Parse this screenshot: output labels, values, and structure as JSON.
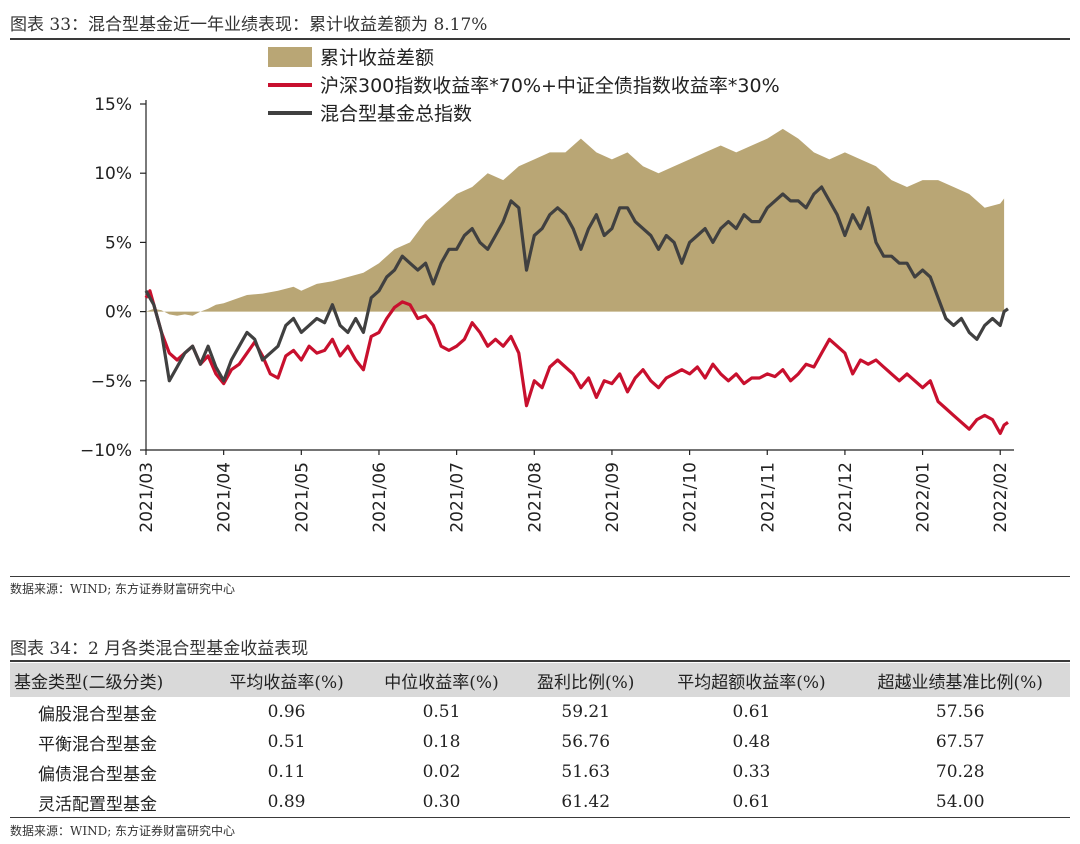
{
  "figure33": {
    "title": "图表 33：混合型基金近一年业绩表现：累计收益差额为 8.17%",
    "source": "数据来源：WIND; 东方证券财富研究中心"
  },
  "chart_data": {
    "type": "line",
    "title": "图表 33：混合型基金近一年业绩表现：累计收益差额为 8.17%",
    "ylim": [
      -10,
      15
    ],
    "yticks": [
      -10,
      -5,
      0,
      5,
      10,
      15
    ],
    "ytick_labels": [
      "−10%",
      "−5%",
      "0%",
      "5%",
      "10%",
      "15%"
    ],
    "xtick_labels": [
      "2021/03",
      "2021/04",
      "2021/05",
      "2021/06",
      "2021/07",
      "2021/08",
      "2021/09",
      "2021/10",
      "2021/11",
      "2021/12",
      "2022/01",
      "2022/02"
    ],
    "x_range": [
      0,
      11.1
    ],
    "legend": [
      {
        "label": "累计收益差额",
        "kind": "area",
        "color": "#b9a675"
      },
      {
        "label": "沪深300指数收益率*70%+中证全债指数收益率*30%",
        "kind": "line",
        "color": "#c8102e"
      },
      {
        "label": "混合型基金总指数",
        "kind": "line",
        "color": "#404040"
      }
    ],
    "series": [
      {
        "name": "累计收益差额",
        "color": "#b9a675",
        "x": [
          0,
          0.1,
          0.2,
          0.3,
          0.4,
          0.5,
          0.6,
          0.7,
          0.8,
          0.9,
          1.0,
          1.1,
          1.2,
          1.3,
          1.5,
          1.7,
          1.9,
          2.0,
          2.2,
          2.4,
          2.6,
          2.8,
          3.0,
          3.2,
          3.4,
          3.6,
          3.8,
          4.0,
          4.2,
          4.4,
          4.6,
          4.8,
          5.0,
          5.2,
          5.4,
          5.6,
          5.8,
          6.0,
          6.2,
          6.4,
          6.6,
          6.8,
          7.0,
          7.2,
          7.4,
          7.6,
          7.8,
          8.0,
          8.2,
          8.4,
          8.6,
          8.8,
          9.0,
          9.2,
          9.4,
          9.6,
          9.8,
          10.0,
          10.2,
          10.4,
          10.6,
          10.8,
          11.0,
          11.05
        ],
        "values": [
          0,
          0.2,
          0.1,
          -0.2,
          -0.3,
          -0.2,
          -0.3,
          0,
          0.2,
          0.5,
          0.6,
          0.8,
          1.0,
          1.2,
          1.3,
          1.5,
          1.8,
          1.5,
          2.0,
          2.2,
          2.5,
          2.8,
          3.5,
          4.5,
          5.0,
          6.5,
          7.5,
          8.5,
          9.0,
          10.0,
          9.5,
          10.5,
          11.0,
          11.5,
          11.5,
          12.5,
          11.5,
          11.0,
          11.5,
          10.5,
          10.0,
          10.5,
          11.0,
          11.5,
          12.0,
          11.5,
          12.0,
          12.5,
          13.2,
          12.5,
          11.5,
          11.0,
          11.5,
          11.0,
          10.5,
          9.5,
          9.0,
          9.5,
          9.5,
          9.0,
          8.5,
          7.5,
          7.8,
          8.17
        ]
      },
      {
        "name": "沪深300指数收益率*70%+中证全债指数收益率*30%",
        "color": "#c8102e",
        "x": [
          0,
          0.05,
          0.1,
          0.2,
          0.3,
          0.4,
          0.5,
          0.6,
          0.7,
          0.8,
          0.9,
          1.0,
          1.1,
          1.2,
          1.3,
          1.4,
          1.5,
          1.6,
          1.7,
          1.8,
          1.9,
          2.0,
          2.1,
          2.2,
          2.3,
          2.4,
          2.5,
          2.6,
          2.7,
          2.8,
          2.9,
          3.0,
          3.1,
          3.2,
          3.3,
          3.4,
          3.5,
          3.6,
          3.7,
          3.8,
          3.9,
          4.0,
          4.1,
          4.2,
          4.3,
          4.4,
          4.5,
          4.6,
          4.7,
          4.8,
          4.9,
          5.0,
          5.1,
          5.2,
          5.3,
          5.4,
          5.5,
          5.6,
          5.7,
          5.8,
          5.9,
          6.0,
          6.1,
          6.2,
          6.3,
          6.4,
          6.5,
          6.6,
          6.7,
          6.8,
          6.9,
          7.0,
          7.1,
          7.2,
          7.3,
          7.4,
          7.5,
          7.6,
          7.7,
          7.8,
          7.9,
          8.0,
          8.1,
          8.2,
          8.3,
          8.4,
          8.5,
          8.6,
          8.7,
          8.8,
          8.9,
          9.0,
          9.1,
          9.2,
          9.3,
          9.4,
          9.5,
          9.6,
          9.7,
          9.8,
          9.9,
          10.0,
          10.1,
          10.2,
          10.3,
          10.4,
          10.5,
          10.6,
          10.7,
          10.8,
          10.9,
          11.0,
          11.05,
          11.1
        ],
        "values": [
          1.0,
          1.5,
          0.5,
          -1.5,
          -3.0,
          -3.5,
          -3.0,
          -2.5,
          -3.8,
          -3.2,
          -4.5,
          -5.2,
          -4.2,
          -3.8,
          -3.0,
          -2.2,
          -3.2,
          -4.5,
          -4.8,
          -3.2,
          -2.8,
          -3.5,
          -2.5,
          -3.0,
          -2.8,
          -2.0,
          -3.2,
          -2.5,
          -3.5,
          -4.2,
          -1.8,
          -1.5,
          -0.5,
          0.3,
          0.7,
          0.5,
          -0.5,
          -0.3,
          -1.0,
          -2.5,
          -2.8,
          -2.5,
          -2.0,
          -0.8,
          -1.5,
          -2.5,
          -2.0,
          -2.5,
          -1.8,
          -3.0,
          -6.8,
          -5.0,
          -5.5,
          -4.0,
          -3.5,
          -4.0,
          -4.5,
          -5.5,
          -4.8,
          -6.2,
          -5.0,
          -5.2,
          -4.5,
          -5.8,
          -4.8,
          -4.2,
          -5.0,
          -5.5,
          -4.8,
          -4.5,
          -4.2,
          -4.5,
          -4.0,
          -4.8,
          -3.8,
          -4.5,
          -5.0,
          -4.5,
          -5.2,
          -4.8,
          -4.8,
          -4.5,
          -4.7,
          -4.2,
          -5.0,
          -4.5,
          -3.8,
          -4.0,
          -3.0,
          -2.0,
          -2.5,
          -3.0,
          -4.5,
          -3.5,
          -3.8,
          -3.5,
          -4.0,
          -4.5,
          -5.0,
          -4.5,
          -5.0,
          -5.5,
          -5.0,
          -6.5,
          -7.0,
          -7.5,
          -8.0,
          -8.5,
          -7.8,
          -7.5,
          -7.8,
          -8.8,
          -8.2,
          -8.0
        ]
      },
      {
        "name": "混合型基金总指数",
        "color": "#404040",
        "x": [
          0,
          0.05,
          0.1,
          0.2,
          0.3,
          0.4,
          0.5,
          0.6,
          0.7,
          0.8,
          0.9,
          1.0,
          1.1,
          1.2,
          1.3,
          1.4,
          1.5,
          1.6,
          1.7,
          1.8,
          1.9,
          2.0,
          2.1,
          2.2,
          2.3,
          2.4,
          2.5,
          2.6,
          2.7,
          2.8,
          2.9,
          3.0,
          3.1,
          3.2,
          3.3,
          3.4,
          3.5,
          3.6,
          3.7,
          3.8,
          3.9,
          4.0,
          4.1,
          4.2,
          4.3,
          4.4,
          4.5,
          4.6,
          4.7,
          4.8,
          4.9,
          5.0,
          5.1,
          5.2,
          5.3,
          5.4,
          5.5,
          5.6,
          5.7,
          5.8,
          5.9,
          6.0,
          6.1,
          6.2,
          6.3,
          6.4,
          6.5,
          6.6,
          6.7,
          6.8,
          6.9,
          7.0,
          7.1,
          7.2,
          7.3,
          7.4,
          7.5,
          7.6,
          7.7,
          7.8,
          7.9,
          8.0,
          8.1,
          8.2,
          8.3,
          8.4,
          8.5,
          8.6,
          8.7,
          8.8,
          8.9,
          9.0,
          9.1,
          9.2,
          9.3,
          9.4,
          9.5,
          9.6,
          9.7,
          9.8,
          9.9,
          10.0,
          10.1,
          10.2,
          10.3,
          10.4,
          10.5,
          10.6,
          10.7,
          10.8,
          10.9,
          11.0,
          11.05,
          11.1
        ],
        "values": [
          1.5,
          1.0,
          0.5,
          -1.5,
          -5.0,
          -4.0,
          -3.0,
          -2.5,
          -3.8,
          -2.5,
          -4.0,
          -5.0,
          -3.5,
          -2.5,
          -1.5,
          -2.0,
          -3.5,
          -3.0,
          -2.5,
          -1.0,
          -0.5,
          -1.5,
          -1.0,
          -0.5,
          -0.8,
          0.5,
          -1.0,
          -1.5,
          -0.5,
          -1.5,
          1.0,
          1.5,
          2.5,
          3.0,
          4.0,
          3.5,
          3.0,
          3.5,
          2.0,
          3.5,
          4.5,
          4.5,
          5.5,
          6.0,
          5.0,
          4.5,
          5.5,
          6.5,
          8.0,
          7.5,
          3.0,
          5.5,
          6.0,
          7.0,
          7.5,
          7.0,
          6.0,
          4.5,
          6.0,
          7.0,
          5.5,
          6.0,
          7.5,
          7.5,
          6.5,
          6.0,
          5.5,
          4.5,
          5.5,
          5.0,
          3.5,
          5.0,
          5.5,
          6.0,
          5.0,
          6.0,
          6.5,
          6.0,
          7.0,
          6.5,
          6.5,
          7.5,
          8.0,
          8.5,
          8.0,
          8.0,
          7.5,
          8.5,
          9.0,
          8.0,
          7.0,
          5.5,
          7.0,
          6.0,
          7.5,
          5.0,
          4.0,
          4.0,
          3.5,
          3.5,
          2.5,
          3.0,
          2.5,
          1.0,
          -0.5,
          -1.0,
          -0.5,
          -1.5,
          -2.0,
          -1.0,
          -0.5,
          -1.0,
          0,
          0.2
        ]
      }
    ]
  },
  "figure34": {
    "title": "图表 34：2 月各类混合型基金收益表现",
    "columns": [
      "基金类型(二级分类)",
      "平均收益率(%)",
      "中位收益率(%)",
      "盈利比例(%)",
      "平均超额收益率(%)",
      "超越业绩基准比例(%)"
    ],
    "rows": [
      [
        "偏股混合型基金",
        "0.96",
        "0.51",
        "59.21",
        "0.61",
        "57.56"
      ],
      [
        "平衡混合型基金",
        "0.51",
        "0.18",
        "56.76",
        "0.48",
        "67.57"
      ],
      [
        "偏债混合型基金",
        "0.11",
        "0.02",
        "51.63",
        "0.33",
        "70.28"
      ],
      [
        "灵活配置型基金",
        "0.89",
        "0.30",
        "61.42",
        "0.61",
        "54.00"
      ]
    ],
    "source": "数据来源：WIND; 东方证券财富研究中心"
  }
}
